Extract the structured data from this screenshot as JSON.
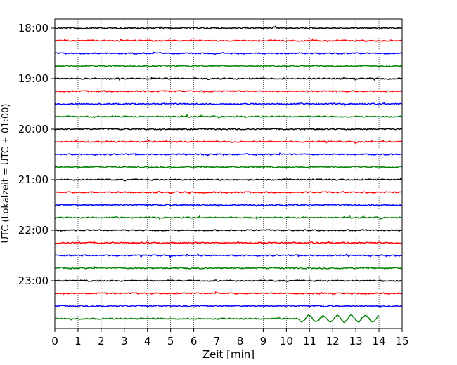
{
  "chart_data": {
    "type": "line",
    "title": "",
    "xlabel": "Zeit  [min]",
    "ylabel": "UTC (Lokalzeit = UTC + 01:00)",
    "xlim": [
      0,
      15
    ],
    "x_ticks": [
      0,
      1,
      2,
      3,
      4,
      5,
      6,
      7,
      8,
      9,
      10,
      11,
      12,
      13,
      14,
      15
    ],
    "x_tick_labels": [
      "0",
      "1",
      "2",
      "3",
      "4",
      "5",
      "6",
      "7",
      "8",
      "9",
      "10",
      "11",
      "12",
      "13",
      "14",
      "15"
    ],
    "y_tick_labels": [
      "18:00",
      "19:00",
      "20:00",
      "21:00",
      "22:00",
      "23:00"
    ],
    "grid": "vertical-dotted",
    "row_minutes": 15,
    "start_hour": 18,
    "colors_cycle": [
      "#000000",
      "#ff0000",
      "#0000ff",
      "#008000"
    ],
    "rows": [
      {
        "start": "18:00",
        "end_min": 15
      },
      {
        "start": "18:15",
        "end_min": 15
      },
      {
        "start": "18:30",
        "end_min": 15
      },
      {
        "start": "18:45",
        "end_min": 15
      },
      {
        "start": "19:00",
        "end_min": 15
      },
      {
        "start": "19:15",
        "end_min": 15
      },
      {
        "start": "19:30",
        "end_min": 15
      },
      {
        "start": "19:45",
        "end_min": 15
      },
      {
        "start": "20:00",
        "end_min": 15
      },
      {
        "start": "20:15",
        "end_min": 15
      },
      {
        "start": "20:30",
        "end_min": 15
      },
      {
        "start": "20:45",
        "end_min": 15
      },
      {
        "start": "21:00",
        "end_min": 15
      },
      {
        "start": "21:15",
        "end_min": 15
      },
      {
        "start": "21:30",
        "end_min": 15
      },
      {
        "start": "21:45",
        "end_min": 15
      },
      {
        "start": "22:00",
        "end_min": 15
      },
      {
        "start": "22:15",
        "end_min": 15
      },
      {
        "start": "22:30",
        "end_min": 15
      },
      {
        "start": "22:45",
        "end_min": 15
      },
      {
        "start": "23:00",
        "end_min": 15
      },
      {
        "start": "23:15",
        "end_min": 15
      },
      {
        "start": "23:30",
        "end_min": 15
      },
      {
        "start": "23:45",
        "end_min": 14
      }
    ]
  }
}
